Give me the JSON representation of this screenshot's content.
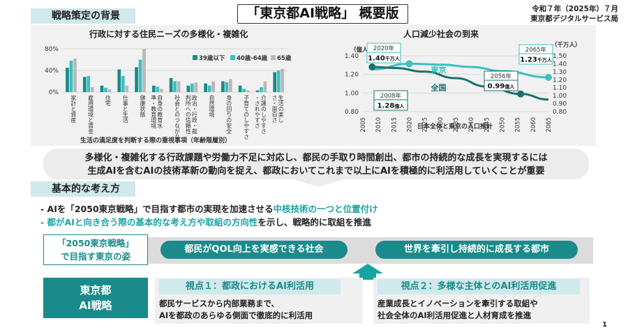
{
  "header": {
    "title": "「東京都AI戦略」 概要版",
    "date": "令和７年（2025年）７月",
    "bureau": "東京都デジタルサービス局"
  },
  "section_background": {
    "label": "戦略策定の背景"
  },
  "section_basic": {
    "label": "基本的な考え方"
  },
  "chart_data": [
    {
      "type": "bar",
      "title": "行政に対する住民ニーズの多様化・複雑化",
      "xlabel": "生活の満足度を判断する際の重視事項（年齢階層別）",
      "ylabel": "",
      "ylim": [
        0,
        80
      ],
      "yticks": [
        "0%",
        "40%",
        "80%"
      ],
      "categories": [
        "家計と資産",
        "雇用環境と賃金",
        "住宅",
        "仕事と生活",
        "健康状態",
        "自身の教育水準・教育環境",
        "社会とのつながり",
        "政治・行政・裁判所への信頼性",
        "自然環境",
        "身の回りの安全",
        "子育てのしやすさ",
        "介護のしやすさ・されやすさ",
        "生活の楽しさ・面白さ"
      ],
      "series": [
        {
          "name": "39歳以下",
          "color": "#1a8a8a",
          "values": [
            45,
            28,
            12,
            42,
            46,
            12,
            26,
            12,
            16,
            20,
            12,
            3,
            37
          ]
        },
        {
          "name": "40歳-64歳",
          "color": "#3cc0c0",
          "values": [
            58,
            30,
            8,
            30,
            60,
            10,
            20,
            16,
            12,
            18,
            6,
            9,
            40
          ]
        },
        {
          "name": "65歳以上",
          "color": "#b8b8b8",
          "values": [
            62,
            9,
            5,
            12,
            80,
            6,
            20,
            18,
            20,
            24,
            3,
            20,
            43
          ]
        }
      ],
      "legend": "top-right"
    },
    {
      "type": "line",
      "title": "人口減少社会の到来",
      "xlabel": "日本全体と東京の人口推計",
      "left_axis_label": "（億人）",
      "right_axis_label": "（千万人）",
      "x": [
        2005,
        2010,
        2015,
        2020,
        2025,
        2030,
        2035,
        2040,
        2045,
        2050,
        2055,
        2060,
        2065
      ],
      "left_ylim": [
        0.8,
        1.4
      ],
      "left_yticks": [
        "0.80",
        "1.00",
        "1.20",
        "1.40"
      ],
      "right_ylim": [
        0.8,
        1.5
      ],
      "right_yticks": [
        "0.80",
        "0.90",
        "1.00",
        "1.10",
        "1.20",
        "1.30",
        "1.40",
        "1.50"
      ],
      "series": [
        {
          "name": "東京",
          "color": "#3cc0c0",
          "axis": "right",
          "x": [
            2008,
            2020,
            2030,
            2040,
            2050,
            2065
          ],
          "values": [
            1.33,
            1.4,
            1.39,
            1.36,
            1.31,
            1.23
          ]
        },
        {
          "name": "全国",
          "color": "#1a6f6f",
          "axis": "left",
          "x": [
            2008,
            2015,
            2025,
            2035,
            2045,
            2056,
            2065
          ],
          "values": [
            1.28,
            1.27,
            1.23,
            1.16,
            1.07,
            0.99,
            0.93
          ]
        }
      ],
      "annotations": [
        {
          "label": "2020年",
          "value": "1.40",
          "unit": "千万人",
          "x": 2020,
          "axis": "right",
          "y": 1.4
        },
        {
          "label": "2065年",
          "value": "1.23",
          "unit": "千万人",
          "x": 2065,
          "axis": "right",
          "y": 1.23
        },
        {
          "label": "2056年",
          "value": "0.99",
          "unit": "億人",
          "x": 2056,
          "axis": "left",
          "y": 0.99
        },
        {
          "label": "2008年",
          "value": "1.28",
          "unit": "億人",
          "x": 2008,
          "axis": "left",
          "y": 1.28
        }
      ]
    }
  ],
  "lead": {
    "line1": "多様化・複雑化する行政課題や労働力不足に対応し、都民の手取り時間創出、都市の持続的な成長を実現するには",
    "line2": "生成AIを含むAIの技術革新の動向を捉え、都政においてこれまで以上にAIを積極的に利活用していくことが重要"
  },
  "bullets": [
    {
      "prefix": "- AIを「2050東京戦略」で目指す都市の実現を加速させる",
      "highlight": "中核技術の一つと位置付け",
      "suffix": ""
    },
    {
      "prefix": "",
      "highlight": "- 都がAIと向き合う際の基本的な考え方や取組の方向性",
      "suffix": "を示し、戦略的に取組を推進"
    }
  ],
  "goals": {
    "left_line1": "「2050東京戦略」",
    "left_line2": "で目指す東京の姿",
    "goal1": "都民がQOL向上を実感できる社会",
    "goal2": "世界を牽引し持続的に成長する都市"
  },
  "ai_strategy": {
    "line1": "東京都",
    "line2": "AI戦略"
  },
  "views": [
    {
      "title": "視点１：都政におけるAI利活用",
      "line1": "都民サービスから内部業務まで、",
      "line2": "AIを都政のあらゆる側面で徹底的に利活用"
    },
    {
      "title": "視点２：多様な主体とのAI利活用促進",
      "line1": "産業成長とイノベーションを牽引する取組や",
      "line2": "社会全体のAI利活用促進と人材育成を推進"
    }
  ],
  "page_number": "1"
}
